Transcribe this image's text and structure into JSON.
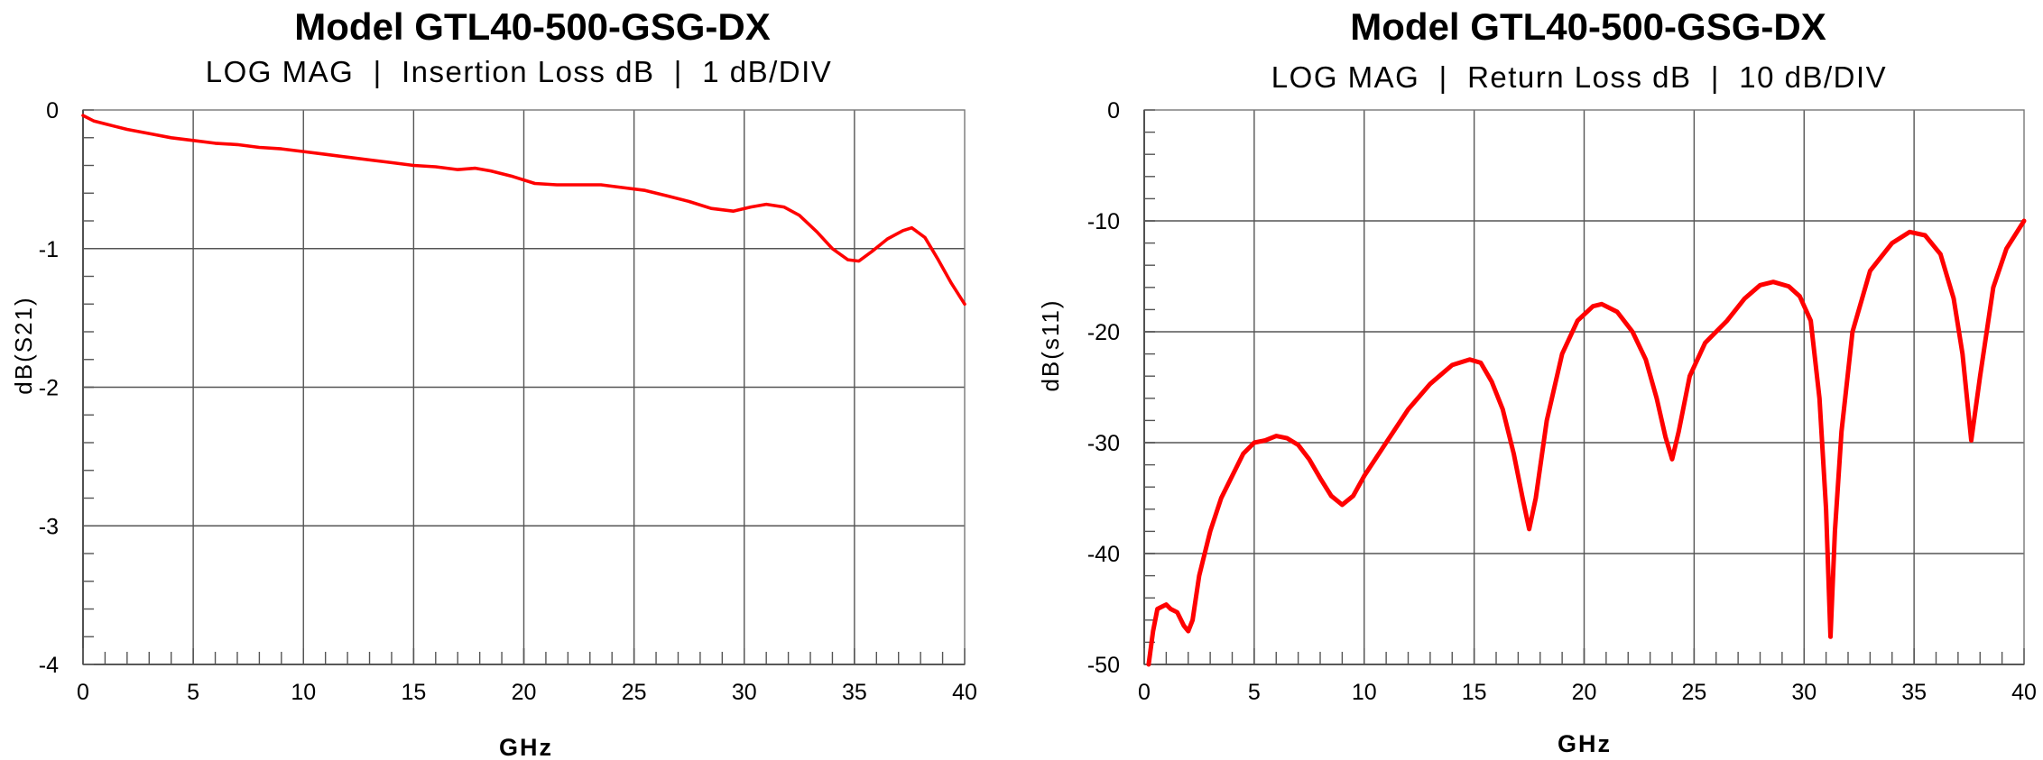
{
  "chart_data": [
    {
      "type": "line",
      "title": "Model GTL40-500-GSG-DX",
      "subtitle": "LOG MAG  |  Insertion Loss dB  |  1 dB/DIV",
      "xlabel": "GHz",
      "ylabel": "dB(S21)",
      "xlim": [
        0,
        40
      ],
      "ylim": [
        -4,
        0
      ],
      "xticks": [
        0,
        5,
        10,
        15,
        20,
        25,
        30,
        35,
        40
      ],
      "yticks": [
        0,
        -1,
        -2,
        -3,
        -4
      ],
      "grid": true,
      "line_color": "#ff0000",
      "series": [
        {
          "x": [
            0,
            0.5,
            1,
            2,
            3,
            4,
            5,
            6,
            7,
            8,
            9,
            10,
            11,
            12,
            13,
            14,
            15,
            16,
            17,
            17.8,
            18.5,
            19.5,
            20.5,
            21.5,
            22.5,
            23.5,
            24.5,
            25.5,
            26.5,
            27.5,
            28.5,
            29.5,
            30.3,
            31,
            31.8,
            32.5,
            33.3,
            34,
            34.7,
            35.2,
            35.8,
            36.5,
            37.2,
            37.6,
            38.2,
            38.8,
            39.4,
            40
          ],
          "values": [
            -0.04,
            -0.08,
            -0.1,
            -0.14,
            -0.17,
            -0.2,
            -0.22,
            -0.24,
            -0.25,
            -0.27,
            -0.28,
            -0.3,
            -0.32,
            -0.34,
            -0.36,
            -0.38,
            -0.4,
            -0.41,
            -0.43,
            -0.42,
            -0.44,
            -0.48,
            -0.53,
            -0.54,
            -0.54,
            -0.54,
            -0.56,
            -0.58,
            -0.62,
            -0.66,
            -0.71,
            -0.73,
            -0.7,
            -0.68,
            -0.7,
            -0.76,
            -0.88,
            -1.0,
            -1.08,
            -1.09,
            -1.02,
            -0.93,
            -0.87,
            -0.85,
            -0.92,
            -1.08,
            -1.25,
            -1.4
          ]
        }
      ]
    },
    {
      "type": "line",
      "title": "Model GTL40-500-GSG-DX",
      "subtitle": "LOG MAG  |  Return Loss dB  |  10 dB/DIV",
      "xlabel": "GHz",
      "ylabel": "dB(s11)",
      "xlim": [
        0,
        40
      ],
      "ylim": [
        -50,
        0
      ],
      "xticks": [
        0,
        5,
        10,
        15,
        20,
        25,
        30,
        35,
        40
      ],
      "yticks": [
        0,
        -10,
        -20,
        -30,
        -40,
        -50
      ],
      "grid": true,
      "line_color": "#ff0000",
      "series": [
        {
          "x": [
            0.2,
            0.4,
            0.6,
            0.8,
            1,
            1.2,
            1.5,
            1.8,
            2.0,
            2.2,
            2.5,
            3,
            3.5,
            4,
            4.5,
            5,
            5.5,
            6,
            6.5,
            7,
            7.5,
            8,
            8.5,
            9,
            9.5,
            10,
            11,
            12,
            13,
            14,
            14.8,
            15.3,
            15.8,
            16.3,
            16.8,
            17.2,
            17.5,
            17.8,
            18.3,
            19,
            19.7,
            20.4,
            20.8,
            21.5,
            22.2,
            22.8,
            23.3,
            23.7,
            24,
            24.3,
            24.8,
            25.5,
            26.5,
            27.3,
            28,
            28.6,
            29.3,
            29.8,
            30.3,
            30.7,
            31.0,
            31.2,
            31.4,
            31.7,
            32.2,
            33,
            34,
            34.8,
            35.5,
            36.2,
            36.8,
            37.2,
            37.6,
            38,
            38.6,
            39.2,
            40
          ],
          "values": [
            -50,
            -47,
            -45,
            -44.8,
            -44.6,
            -45,
            -45.3,
            -46.5,
            -47,
            -46,
            -42,
            -38,
            -35,
            -33,
            -31,
            -30,
            -29.8,
            -29.4,
            -29.6,
            -30.2,
            -31.5,
            -33.2,
            -34.8,
            -35.6,
            -34.8,
            -33,
            -30,
            -27,
            -24.7,
            -23,
            -22.5,
            -22.8,
            -24.5,
            -27,
            -31,
            -35,
            -37.8,
            -35,
            -28,
            -22,
            -19,
            -17.7,
            -17.5,
            -18.2,
            -20,
            -22.5,
            -26,
            -29.5,
            -31.5,
            -29,
            -24,
            -21,
            -19,
            -17,
            -15.8,
            -15.5,
            -15.9,
            -16.8,
            -19,
            -26,
            -36,
            -47.5,
            -38,
            -29,
            -20,
            -14.5,
            -12,
            -11,
            -11.3,
            -13,
            -17,
            -22,
            -29.8,
            -24,
            -16,
            -12.5,
            -10
          ]
        }
      ]
    }
  ]
}
